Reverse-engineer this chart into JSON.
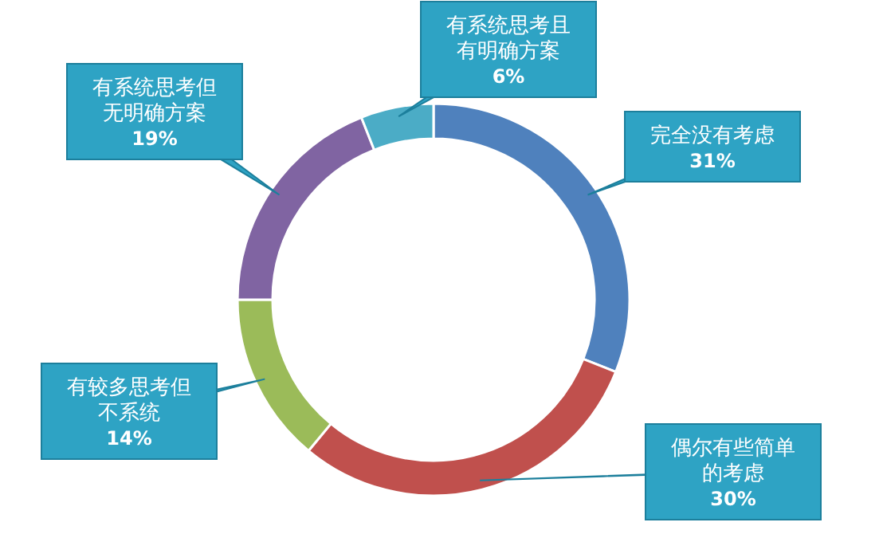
{
  "chart_data": {
    "type": "donut",
    "categories": [
      "完全没有考虑",
      "偶尔有些简单的考虑",
      "有较多思考但不系统",
      "有系统思考但无明确方案",
      "有系统思考且有明确方案"
    ],
    "values": [
      31,
      30,
      14,
      19,
      6
    ],
    "value_labels": [
      "31%",
      "30%",
      "14%",
      "19%",
      "6%"
    ],
    "colors": [
      "#4f81bd",
      "#c0504d",
      "#9bbb59",
      "#8064a2",
      "#4bacc6"
    ]
  }
}
